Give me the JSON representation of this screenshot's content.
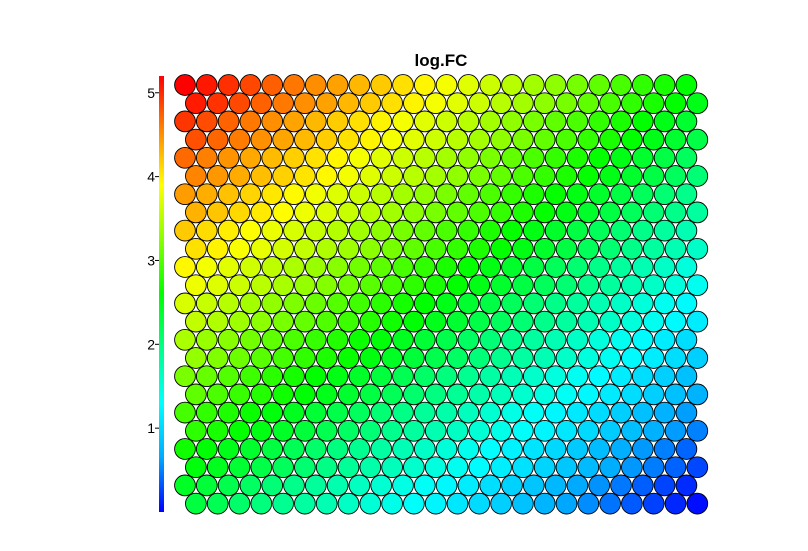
{
  "chart_data": {
    "type": "heatmap",
    "subtype": "hexagonal-som-map",
    "title": "log.FC",
    "grid": {
      "columns": 24,
      "rows": 24
    },
    "value_range": [
      0,
      5.2
    ],
    "legend": {
      "position": "left",
      "type": "colorbar",
      "ticks": [
        "1",
        "2",
        "3",
        "4",
        "5"
      ]
    },
    "colormap": [
      "#0000ff",
      "#00aaff",
      "#00ffff",
      "#00ff88",
      "#00ff00",
      "#88ff00",
      "#ffff00",
      "#ff8800",
      "#ff0000"
    ],
    "cell_border_color": "#000000",
    "control_points": {
      "top_left": 5.2,
      "top_right": 2.6,
      "bottom_left": 2.3,
      "bottom_right": 0.05,
      "center": 2.6
    }
  }
}
